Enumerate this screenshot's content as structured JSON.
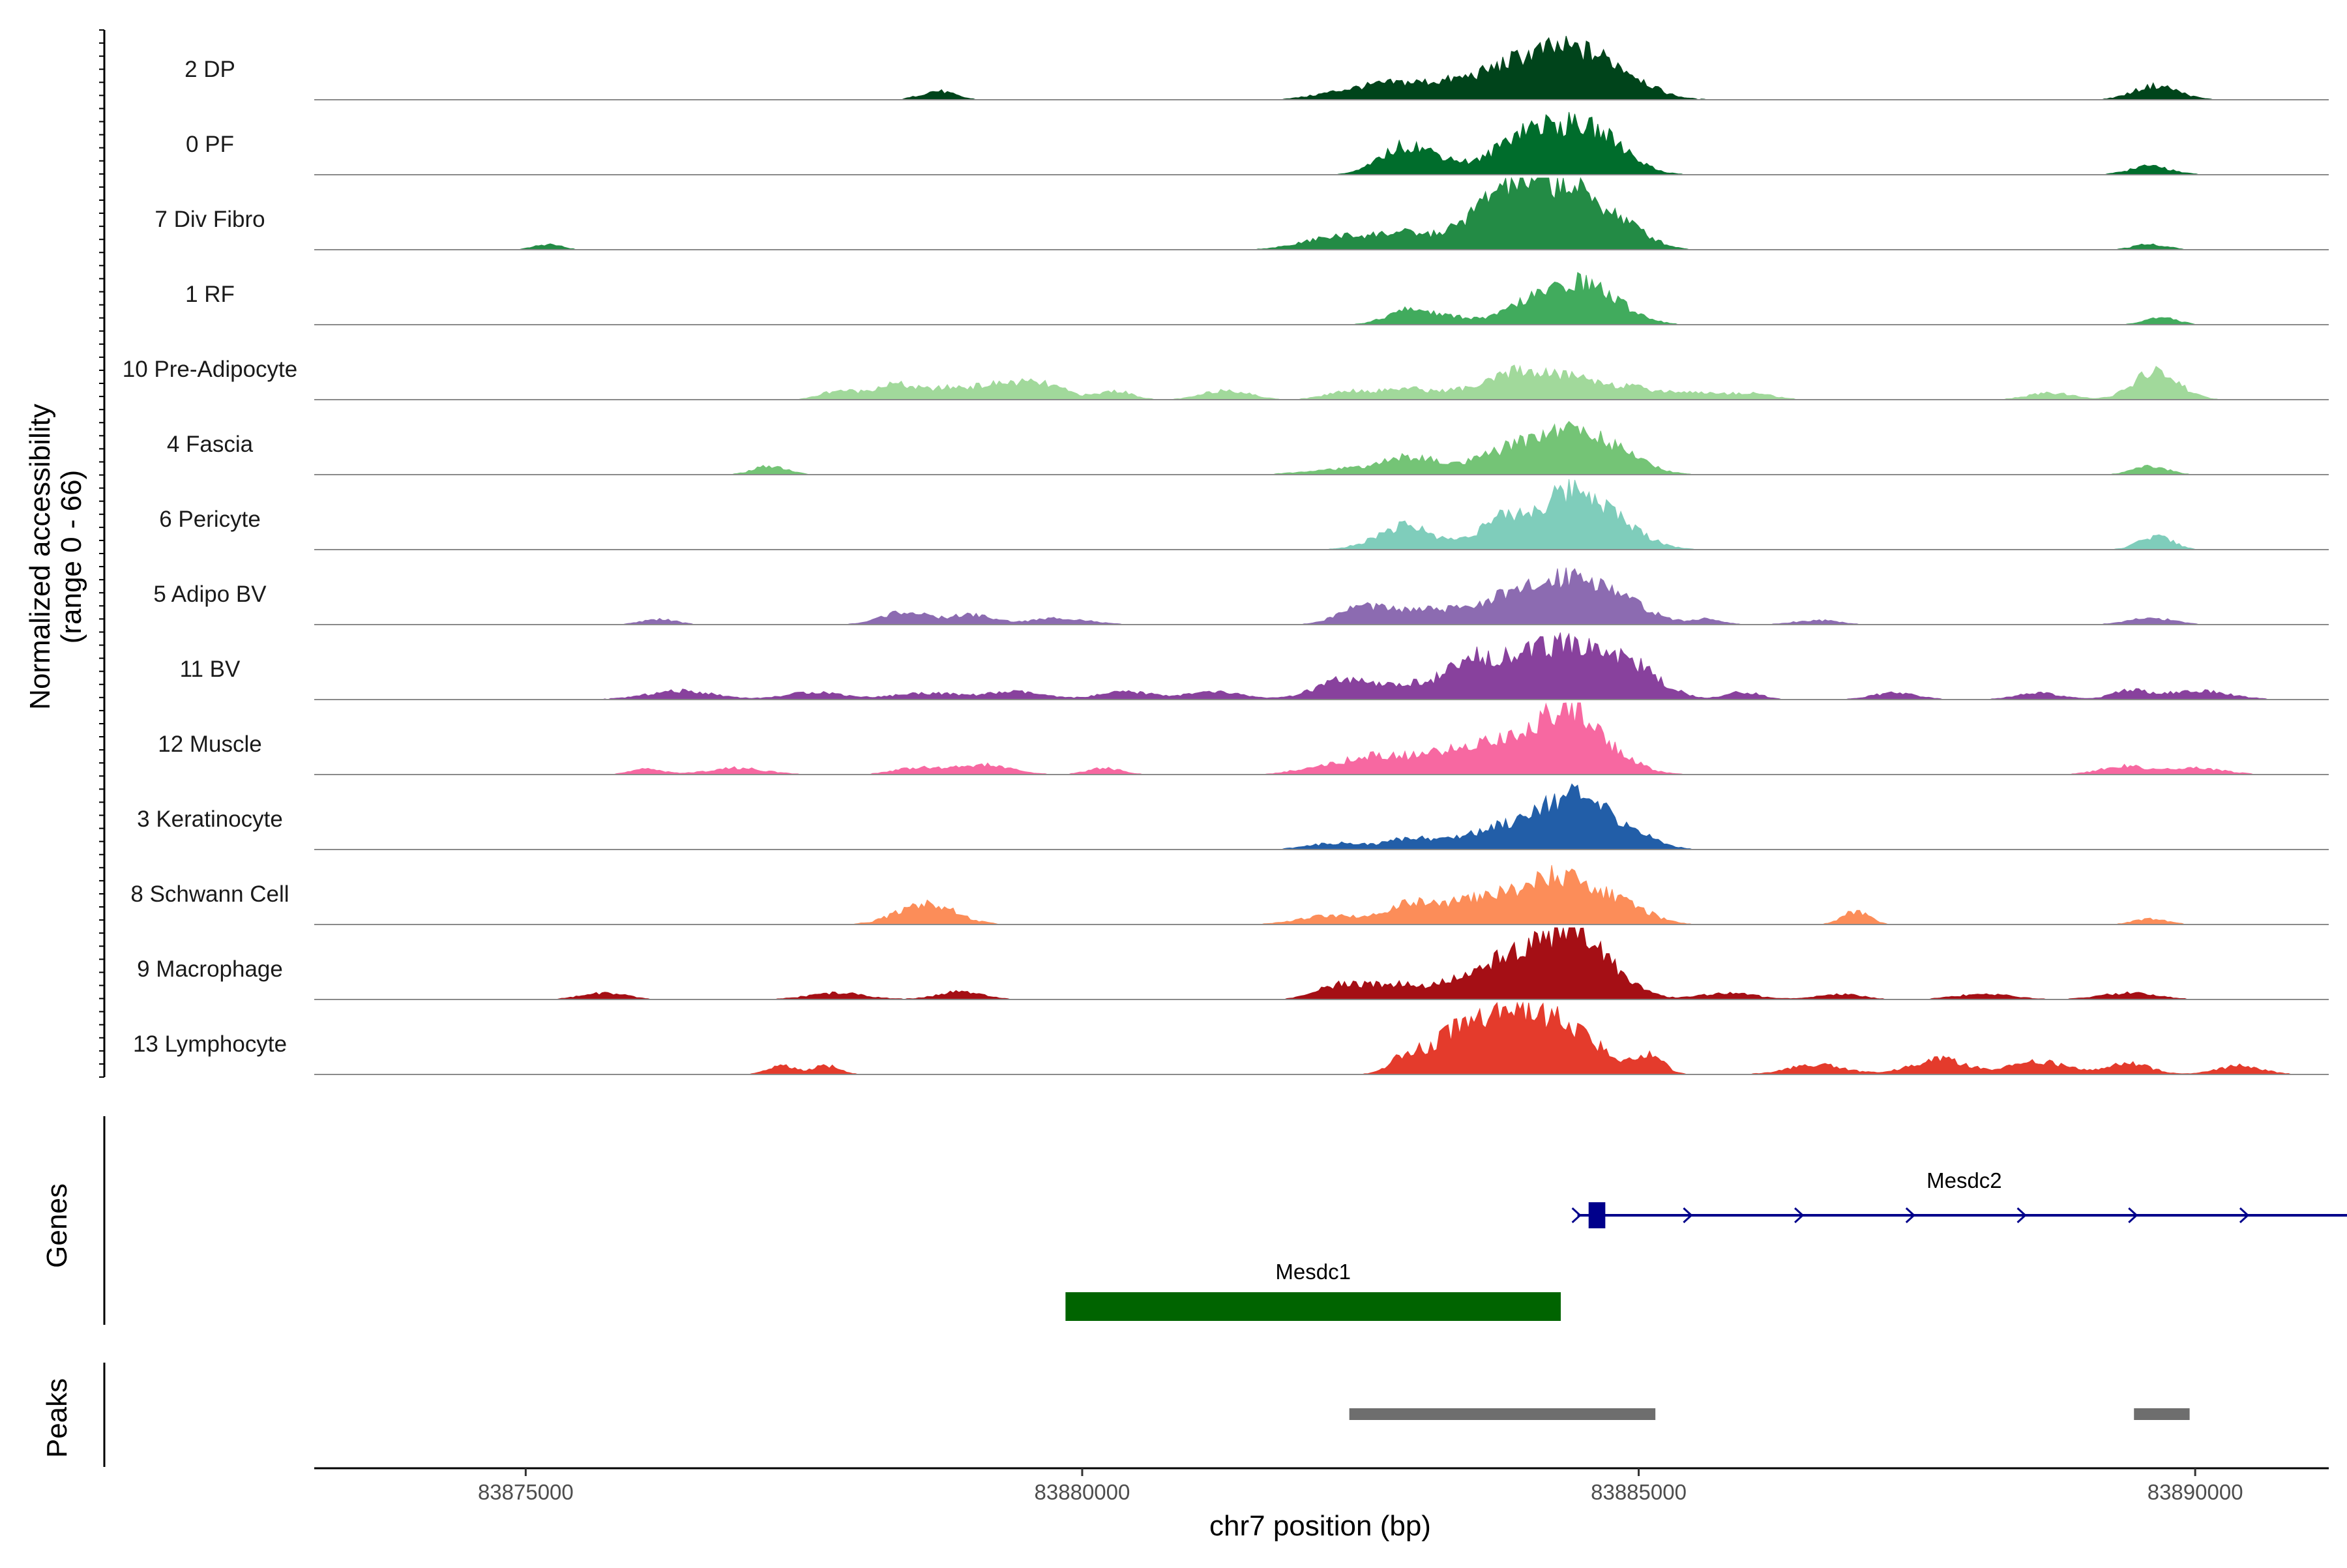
{
  "chart_data": {
    "type": "area",
    "title": "",
    "ylabel": "Normalized accessibility\n(range 0 - 66)",
    "ylabel_lines": [
      "Normalized accessibility",
      "(range 0 - 66)"
    ],
    "ylim": [
      0,
      66
    ],
    "xlabel": "chr7 position (bp)",
    "xlim": [
      83873100,
      83891200
    ],
    "x_ticks": [
      83875000,
      83880000,
      83885000,
      83890000
    ],
    "x_tick_labels": [
      "83875000",
      "83880000",
      "83885000",
      "83890000"
    ],
    "series": [
      {
        "name": "2 DP",
        "color": "#00441b",
        "peaks": [
          [
            83878700,
            8,
            150
          ],
          [
            83882300,
            5,
            250
          ],
          [
            83882800,
            14,
            300
          ],
          [
            83883300,
            9,
            250
          ],
          [
            83883850,
            24,
            330
          ],
          [
            83884450,
            42,
            380
          ],
          [
            83884900,
            7,
            220
          ],
          [
            83889650,
            13,
            200
          ]
        ]
      },
      {
        "name": "0 PF",
        "color": "#006d2c",
        "peaks": [
          [
            83882900,
            26,
            220
          ],
          [
            83883300,
            10,
            200
          ],
          [
            83883900,
            26,
            220
          ],
          [
            83884400,
            44,
            330
          ],
          [
            83884800,
            10,
            200
          ],
          [
            83889600,
            8,
            180
          ]
        ]
      },
      {
        "name": "7 Div Fibro",
        "color": "#238b45",
        "peaks": [
          [
            83875200,
            5,
            120
          ],
          [
            83882300,
            12,
            300
          ],
          [
            83882900,
            14,
            250
          ],
          [
            83883400,
            10,
            200
          ],
          [
            83883800,
            48,
            250
          ],
          [
            83884350,
            56,
            320
          ],
          [
            83884900,
            14,
            220
          ],
          [
            83889600,
            5,
            150
          ]
        ]
      },
      {
        "name": "1 RF",
        "color": "#41ab5d",
        "peaks": [
          [
            83882950,
            14,
            200
          ],
          [
            83883400,
            6,
            200
          ],
          [
            83883950,
            14,
            180
          ],
          [
            83884450,
            40,
            280
          ],
          [
            83884900,
            6,
            200
          ],
          [
            83889700,
            6,
            150
          ]
        ]
      },
      {
        "name": "10 Pre-Adipocyte",
        "color": "#a1d99b",
        "peaks": [
          [
            83877800,
            8,
            150
          ],
          [
            83878300,
            14,
            200
          ],
          [
            83878800,
            9,
            200
          ],
          [
            83879300,
            14,
            250
          ],
          [
            83879700,
            10,
            200
          ],
          [
            83880300,
            8,
            150
          ],
          [
            83881300,
            9,
            200
          ],
          [
            83882400,
            8,
            200
          ],
          [
            83882900,
            10,
            200
          ],
          [
            83883400,
            8,
            200
          ],
          [
            83883900,
            24,
            220
          ],
          [
            83884400,
            20,
            250
          ],
          [
            83884950,
            10,
            250
          ],
          [
            83885500,
            6,
            200
          ],
          [
            83886000,
            6,
            200
          ],
          [
            83888700,
            6,
            200
          ],
          [
            83889650,
            26,
            200
          ]
        ]
      },
      {
        "name": "4 Fascia",
        "color": "#74c476",
        "peaks": [
          [
            83877200,
            8,
            150
          ],
          [
            83882300,
            5,
            300
          ],
          [
            83882950,
            16,
            250
          ],
          [
            83883800,
            18,
            300
          ],
          [
            83884400,
            40,
            330
          ],
          [
            83884900,
            9,
            220
          ],
          [
            83889600,
            8,
            150
          ]
        ]
      },
      {
        "name": "6 Pericyte",
        "color": "#7fcdbb",
        "peaks": [
          [
            83882900,
            22,
            250
          ],
          [
            83883800,
            28,
            250
          ],
          [
            83884450,
            56,
            280
          ],
          [
            83884950,
            10,
            220
          ],
          [
            83889650,
            12,
            150
          ]
        ]
      },
      {
        "name": "5 Adipo BV",
        "color": "#8c6bb1",
        "peaks": [
          [
            83876200,
            5,
            150
          ],
          [
            83878400,
            12,
            200
          ],
          [
            83879000,
            9,
            200
          ],
          [
            83879800,
            6,
            250
          ],
          [
            83882500,
            16,
            200
          ],
          [
            83883000,
            12,
            250
          ],
          [
            83883800,
            24,
            350
          ],
          [
            83884450,
            42,
            300
          ],
          [
            83884950,
            12,
            220
          ],
          [
            83885600,
            5,
            150
          ],
          [
            83886600,
            4,
            200
          ],
          [
            83889600,
            6,
            200
          ]
        ]
      },
      {
        "name": "11 BV",
        "color": "#88419d",
        "peaks": [
          [
            83876400,
            8,
            300
          ],
          [
            83877600,
            7,
            250
          ],
          [
            83878600,
            6,
            300
          ],
          [
            83879400,
            7,
            250
          ],
          [
            83880400,
            7,
            250
          ],
          [
            83881200,
            7,
            250
          ],
          [
            83882350,
            18,
            250
          ],
          [
            83882900,
            10,
            200
          ],
          [
            83883550,
            36,
            300
          ],
          [
            83884250,
            44,
            320
          ],
          [
            83884850,
            34,
            300
          ],
          [
            83885950,
            7,
            150
          ],
          [
            83887300,
            6,
            200
          ],
          [
            83888600,
            6,
            200
          ],
          [
            83889400,
            8,
            150
          ],
          [
            83890000,
            8,
            300
          ]
        ]
      },
      {
        "name": "12 Muscle",
        "color": "#f768a1",
        "peaks": [
          [
            83876100,
            5,
            150
          ],
          [
            83876900,
            6,
            250
          ],
          [
            83878500,
            6,
            200
          ],
          [
            83879100,
            9,
            250
          ],
          [
            83880200,
            6,
            150
          ],
          [
            83882100,
            6,
            200
          ],
          [
            83882600,
            16,
            250
          ],
          [
            83883100,
            12,
            250
          ],
          [
            83883650,
            28,
            300
          ],
          [
            83884350,
            62,
            280
          ],
          [
            83884850,
            8,
            220
          ],
          [
            83889350,
            8,
            200
          ],
          [
            83890000,
            6,
            250
          ]
        ]
      },
      {
        "name": "3 Keratinocyte",
        "color": "#225ea8",
        "peaks": [
          [
            83882300,
            6,
            250
          ],
          [
            83882950,
            10,
            200
          ],
          [
            83883500,
            10,
            250
          ],
          [
            83884000,
            20,
            300
          ],
          [
            83884450,
            42,
            300
          ],
          [
            83884950,
            10,
            220
          ]
        ]
      },
      {
        "name": "8 Schwann Cell",
        "color": "#fc8d59",
        "peaks": [
          [
            83878600,
            20,
            250
          ],
          [
            83882200,
            8,
            250
          ],
          [
            83882950,
            18,
            250
          ],
          [
            83883600,
            22,
            300
          ],
          [
            83884300,
            44,
            320
          ],
          [
            83884900,
            14,
            220
          ],
          [
            83886950,
            12,
            120
          ],
          [
            83889600,
            5,
            150
          ]
        ]
      },
      {
        "name": "9 Macrophage",
        "color": "#a50f15",
        "peaks": [
          [
            83875700,
            6,
            200
          ],
          [
            83877800,
            6,
            250
          ],
          [
            83878900,
            7,
            200
          ],
          [
            83882300,
            12,
            200
          ],
          [
            83882800,
            14,
            250
          ],
          [
            83883450,
            18,
            250
          ],
          [
            83883900,
            36,
            220
          ],
          [
            83884400,
            60,
            260
          ],
          [
            83884850,
            12,
            200
          ],
          [
            83885800,
            6,
            250
          ],
          [
            83886800,
            5,
            200
          ],
          [
            83888100,
            5,
            250
          ],
          [
            83889400,
            6,
            250
          ]
        ]
      },
      {
        "name": "13 Lymphocyte",
        "color": "#e43b2c",
        "peaks": [
          [
            83877300,
            8,
            120
          ],
          [
            83877700,
            8,
            120
          ],
          [
            83882900,
            12,
            120
          ],
          [
            83883400,
            36,
            300
          ],
          [
            83883900,
            44,
            300
          ],
          [
            83884400,
            34,
            300
          ],
          [
            83885100,
            18,
            120
          ],
          [
            83886600,
            9,
            250
          ],
          [
            83887700,
            14,
            250
          ],
          [
            83888600,
            12,
            250
          ],
          [
            83889400,
            10,
            200
          ],
          [
            83890400,
            8,
            200
          ]
        ]
      }
    ],
    "genes": [
      {
        "name": "Mesdc2",
        "start": 83884450,
        "end": 83891400,
        "strand": "+",
        "color": "#00008b",
        "exon": [
          83884550,
          83884700
        ]
      },
      {
        "name": "Mesdc1",
        "start": 83879850,
        "end": 83884300,
        "strand": "-",
        "color": "#006400"
      }
    ],
    "peak_regions": [
      {
        "start": 83882400,
        "end": 83885150
      },
      {
        "start": 83889450,
        "end": 83889950
      }
    ],
    "panels": {
      "genes_label": "Genes",
      "peaks_label": "Peaks"
    }
  }
}
